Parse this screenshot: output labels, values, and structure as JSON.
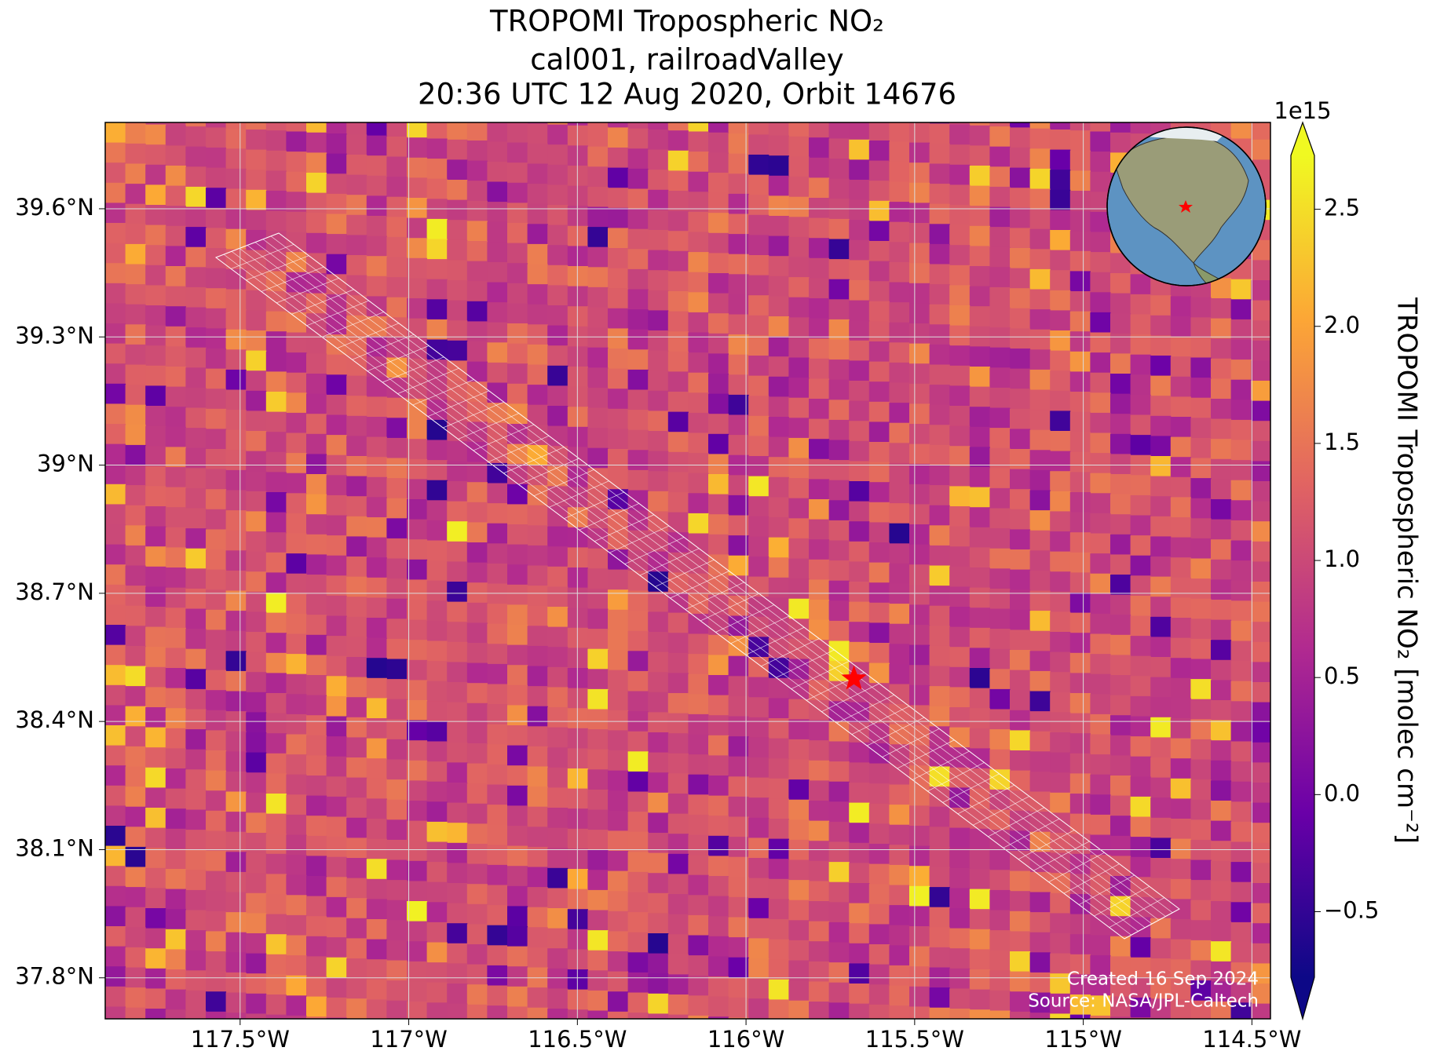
{
  "chart_data": {
    "type": "map",
    "title_lines": [
      "TROPOMI Tropospheric NO₂",
      "cal001, railroadValley",
      "20:36 UTC 12 Aug 2020, Orbit 14676"
    ],
    "xlim": [
      -117.9,
      -114.445
    ],
    "ylim": [
      37.704,
      39.802
    ],
    "xticks": [
      {
        "value": -117.5,
        "label": "117.5°W"
      },
      {
        "value": -117,
        "label": "117°W"
      },
      {
        "value": -116.5,
        "label": "116.5°W"
      },
      {
        "value": -116,
        "label": "116°W"
      },
      {
        "value": -115.5,
        "label": "115.5°W"
      },
      {
        "value": -115,
        "label": "115°W"
      },
      {
        "value": -114.5,
        "label": "114.5°W"
      }
    ],
    "yticks": [
      {
        "value": 37.8,
        "label": "37.8°N"
      },
      {
        "value": 38.1,
        "label": "38.1°N"
      },
      {
        "value": 38.4,
        "label": "38.4°N"
      },
      {
        "value": 38.7,
        "label": "38.7°N"
      },
      {
        "value": 39,
        "label": "39°N"
      },
      {
        "value": 39.3,
        "label": "39.3°N"
      },
      {
        "value": 39.6,
        "label": "39.6°N"
      }
    ],
    "grid": true,
    "colormap": [
      "#0d0887",
      "#6a00a8",
      "#b12a90",
      "#e16462",
      "#fca636",
      "#f0f921"
    ],
    "colorbar": {
      "label": "TROPOMI Tropospheric NO₂ [molec cm⁻²]",
      "offset_text": "1e15",
      "vlim": [
        -0.78,
        2.73
      ],
      "ticks": [
        {
          "value": -0.5,
          "label": "−0.5"
        },
        {
          "value": 0,
          "label": "0.0"
        },
        {
          "value": 0.5,
          "label": "0.5"
        },
        {
          "value": 1,
          "label": "1.0"
        },
        {
          "value": 1.5,
          "label": "1.5"
        },
        {
          "value": 2,
          "label": "2.0"
        },
        {
          "value": 2.5,
          "label": "2.5"
        }
      ]
    },
    "marker": {
      "lon": -115.68,
      "lat": 38.5,
      "color": "#ff0000"
    },
    "credits": [
      "Created 16 Sep 2024",
      "Source: NASA/JPL-Caltech"
    ]
  }
}
